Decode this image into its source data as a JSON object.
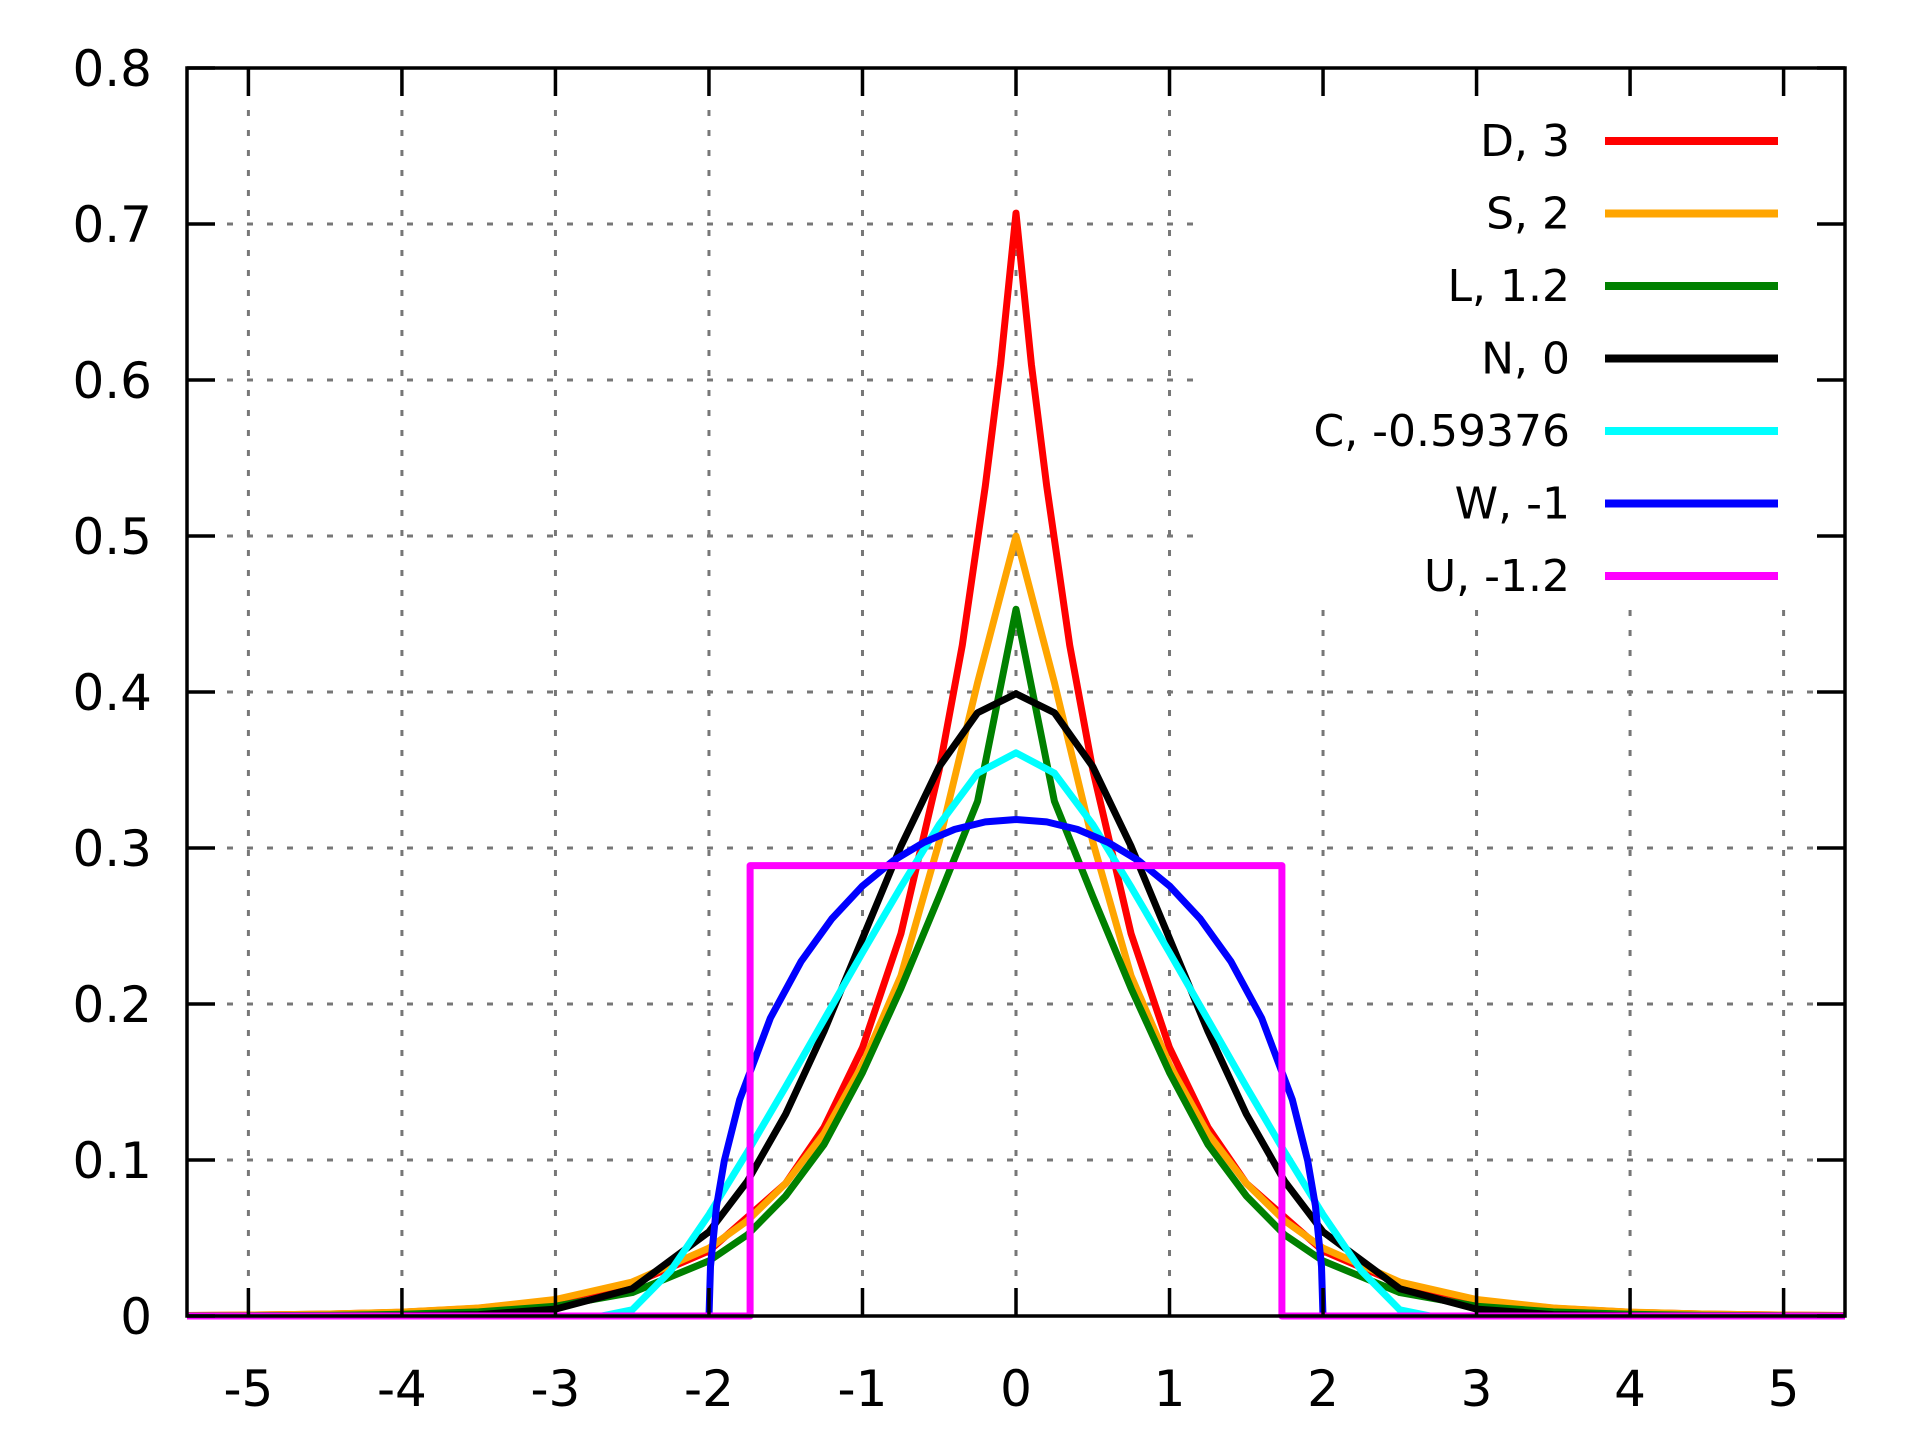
{
  "chart_data": {
    "type": "line",
    "title": "",
    "xlabel": "",
    "ylabel": "",
    "xlim": [
      -5.4,
      5.4
    ],
    "ylim": [
      0,
      0.8
    ],
    "grid": true,
    "legend_position": "top-right",
    "x_ticks": [
      -5,
      -4,
      -3,
      -2,
      -1,
      0,
      1,
      2,
      3,
      4,
      5
    ],
    "x_tick_labels": [
      "-5",
      "-4",
      "-3",
      "-2",
      "-1",
      "0",
      "1",
      "2",
      "3",
      "4",
      "5"
    ],
    "y_ticks": [
      0,
      0.1,
      0.2,
      0.3,
      0.4,
      0.5,
      0.6,
      0.7,
      0.8
    ],
    "y_tick_labels": [
      "0",
      "0.1",
      "0.2",
      "0.3",
      "0.4",
      "0.5",
      "0.6",
      "0.7",
      "0.8"
    ],
    "series": [
      {
        "name": "D,  3",
        "color": "#ff0000",
        "x": [
          -5.4,
          -5,
          -4.5,
          -4,
          -3.5,
          -3,
          -2.5,
          -2,
          -1.5,
          -1.25,
          -1,
          -0.75,
          -0.5,
          -0.35,
          -0.2,
          -0.1,
          0,
          0.1,
          0.2,
          0.35,
          0.5,
          0.75,
          1,
          1.25,
          1.5,
          2,
          2.5,
          3,
          3.5,
          4,
          4.5,
          5,
          5.4
        ],
        "y": [
          0.0003,
          0.0006,
          0.0012,
          0.0024,
          0.005,
          0.0101,
          0.0206,
          0.0417,
          0.085,
          0.121,
          0.172,
          0.245,
          0.35,
          0.43,
          0.532,
          0.61,
          0.707,
          0.61,
          0.532,
          0.43,
          0.35,
          0.245,
          0.172,
          0.121,
          0.085,
          0.0417,
          0.0206,
          0.0101,
          0.005,
          0.0024,
          0.0012,
          0.0006,
          0.0003
        ]
      },
      {
        "name": "S,  2",
        "color": "#ffa500",
        "x": [
          -5.4,
          -5,
          -4.5,
          -4,
          -3.5,
          -3,
          -2.5,
          -2,
          -1.75,
          -1.5,
          -1.25,
          -1,
          -0.75,
          -0.5,
          -0.25,
          0,
          0.25,
          0.5,
          0.75,
          1,
          1.25,
          1.5,
          1.75,
          2,
          2.5,
          3,
          3.5,
          4,
          4.5,
          5,
          5.4
        ],
        "y": [
          0.0003,
          0.0006,
          0.0012,
          0.0025,
          0.0051,
          0.0106,
          0.0218,
          0.0435,
          0.061,
          0.085,
          0.117,
          0.161,
          0.218,
          0.304,
          0.406,
          0.5,
          0.406,
          0.304,
          0.218,
          0.161,
          0.117,
          0.085,
          0.061,
          0.0435,
          0.0218,
          0.0106,
          0.0051,
          0.0025,
          0.0012,
          0.0006,
          0.0003
        ]
      },
      {
        "name": "L,  1.2",
        "color": "#008000",
        "x": [
          -5.4,
          -5,
          -4.5,
          -4,
          -3.5,
          -3,
          -2.5,
          -2,
          -1.75,
          -1.5,
          -1.25,
          -1,
          -0.75,
          -0.5,
          -0.25,
          0,
          0.25,
          0.5,
          0.75,
          1,
          1.25,
          1.5,
          1.75,
          2,
          2.5,
          3,
          3.5,
          4,
          4.5,
          5,
          5.4
        ],
        "y": [
          0.0001,
          0.0002,
          0.0004,
          0.0011,
          0.0026,
          0.0063,
          0.015,
          0.0353,
          0.052,
          0.077,
          0.11,
          0.156,
          0.21,
          0.269,
          0.33,
          0.453,
          0.33,
          0.269,
          0.21,
          0.156,
          0.11,
          0.077,
          0.052,
          0.0353,
          0.015,
          0.0063,
          0.0026,
          0.0011,
          0.0004,
          0.0002,
          0.0001
        ]
      },
      {
        "name": "N,  0",
        "color": "#000000",
        "x": [
          -5.4,
          -5,
          -4.5,
          -4,
          -3.5,
          -3,
          -2.5,
          -2,
          -1.75,
          -1.5,
          -1.25,
          -1,
          -0.75,
          -0.5,
          -0.25,
          0,
          0.25,
          0.5,
          0.75,
          1,
          1.25,
          1.5,
          1.75,
          2,
          2.5,
          3,
          3.5,
          4,
          4.5,
          5,
          5.4
        ],
        "y": [
          0,
          0,
          0,
          0.0001,
          0.0009,
          0.0044,
          0.0175,
          0.054,
          0.0863,
          0.1295,
          0.1826,
          0.242,
          0.3011,
          0.3521,
          0.3867,
          0.3989,
          0.3867,
          0.3521,
          0.3011,
          0.242,
          0.1826,
          0.1295,
          0.0863,
          0.054,
          0.0175,
          0.0044,
          0.0009,
          0.0001,
          0,
          0,
          0
        ]
      },
      {
        "name": "C, -0.59376",
        "color": "#00ffff",
        "x": [
          -5.4,
          -3,
          -2.7,
          -2.5,
          -2.25,
          -2,
          -1.75,
          -1.5,
          -1.25,
          -1,
          -0.75,
          -0.5,
          -0.25,
          0,
          0.25,
          0.5,
          0.75,
          1,
          1.25,
          1.5,
          1.75,
          2,
          2.25,
          2.5,
          2.7,
          3,
          5.4
        ],
        "y": [
          0,
          0,
          0,
          0.004,
          0.029,
          0.065,
          0.105,
          0.147,
          0.19,
          0.233,
          0.275,
          0.315,
          0.348,
          0.361,
          0.348,
          0.315,
          0.275,
          0.233,
          0.19,
          0.147,
          0.105,
          0.065,
          0.029,
          0.004,
          0,
          0,
          0
        ]
      },
      {
        "name": "W, -1",
        "color": "#0000ff",
        "x": [
          -2,
          -1.99,
          -1.95,
          -1.9,
          -1.8,
          -1.6,
          -1.4,
          -1.2,
          -1,
          -0.8,
          -0.6,
          -0.4,
          -0.2,
          0,
          0.2,
          0.4,
          0.6,
          0.8,
          1,
          1.2,
          1.4,
          1.6,
          1.8,
          1.9,
          1.95,
          1.99,
          2
        ],
        "y": [
          0,
          0.0318,
          0.0707,
          0.0995,
          0.1387,
          0.191,
          0.2273,
          0.2546,
          0.2757,
          0.2918,
          0.3036,
          0.3119,
          0.3167,
          0.3183,
          0.3167,
          0.3119,
          0.3036,
          0.2918,
          0.2757,
          0.2546,
          0.2273,
          0.191,
          0.1387,
          0.0995,
          0.0707,
          0.0318,
          0
        ]
      },
      {
        "name": "U, -1.2",
        "color": "#ff00ff",
        "x": [
          -5.4,
          -1.732,
          -1.732,
          1.732,
          1.732,
          5.4
        ],
        "y": [
          0,
          0,
          0.2887,
          0.2887,
          0,
          0
        ]
      }
    ]
  }
}
